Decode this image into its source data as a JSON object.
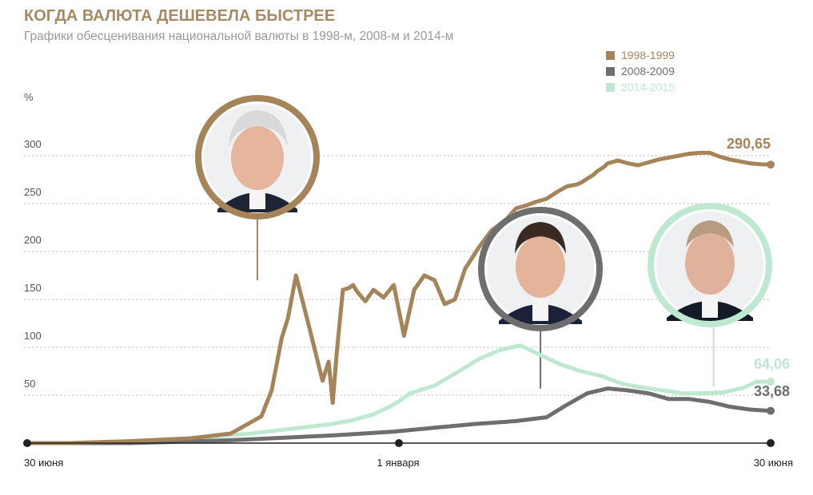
{
  "header": {
    "title": "КОГДА ВАЛЮТА ДЕШЕВЕЛА БЫСТРЕЕ",
    "subtitle": "Графики обесценивания национальной валюты в 1998-м, 2008-м и 2014-м"
  },
  "chart_data": {
    "type": "line",
    "ylabel": "%",
    "ylim": [
      0,
      320
    ],
    "yticks": [
      50,
      100,
      150,
      200,
      250,
      300
    ],
    "grid": true,
    "legend_position": "top-right",
    "x_axis_labels": [
      "30 июня",
      "1 января",
      "30 июня"
    ],
    "x_axis_range": [
      0,
      365
    ],
    "series": [
      {
        "name": "1998-1999",
        "color": "#a6845a",
        "end_label": "290,65",
        "x": [
          0,
          20,
          50,
          80,
          100,
          115,
          120,
          125,
          128,
          132,
          138,
          145,
          148,
          150,
          152,
          155,
          158,
          160,
          162,
          166,
          170,
          175,
          180,
          185,
          190,
          195,
          200,
          205,
          210,
          215,
          222,
          228,
          235,
          240,
          245,
          250,
          255,
          260,
          265,
          270,
          272,
          275,
          278,
          280,
          283,
          285,
          290,
          295,
          300,
          305,
          310,
          315,
          320,
          325,
          330,
          335,
          340,
          345,
          350,
          355,
          360,
          365
        ],
        "values": [
          0,
          0,
          2,
          5,
          10,
          28,
          55,
          110,
          130,
          175,
          125,
          65,
          85,
          42,
          95,
          160,
          162,
          165,
          158,
          148,
          160,
          152,
          165,
          112,
          160,
          175,
          170,
          145,
          150,
          182,
          205,
          222,
          233,
          245,
          248,
          252,
          255,
          262,
          268,
          270,
          272,
          276,
          280,
          284,
          288,
          292,
          295,
          292,
          290,
          293,
          296,
          298,
          300,
          302,
          303,
          303,
          299,
          296,
          294,
          292,
          291,
          290.65
        ]
      },
      {
        "name": "2008-2009",
        "color": "#6e6e6e",
        "end_label": "33,68",
        "x": [
          0,
          50,
          100,
          150,
          180,
          200,
          220,
          240,
          255,
          265,
          275,
          285,
          295,
          305,
          315,
          325,
          335,
          345,
          355,
          365
        ],
        "values": [
          0,
          0,
          3,
          8,
          12,
          16,
          20,
          23,
          27,
          40,
          52,
          57,
          55,
          52,
          46,
          46,
          43,
          38,
          35,
          33.68
        ]
      },
      {
        "name": "2014-2015",
        "color": "#bfe8d3",
        "end_label": "64,06",
        "x": [
          0,
          50,
          80,
          110,
          130,
          150,
          160,
          170,
          178,
          182,
          188,
          200,
          212,
          222,
          232,
          242,
          252,
          262,
          272,
          282,
          292,
          302,
          312,
          322,
          332,
          342,
          352,
          358,
          365
        ],
        "values": [
          0,
          0,
          5,
          10,
          15,
          20,
          24,
          30,
          38,
          43,
          52,
          60,
          75,
          88,
          97,
          102,
          92,
          82,
          75,
          70,
          62,
          58,
          55,
          52,
          52,
          53,
          58,
          64,
          64.06
        ]
      }
    ]
  },
  "portraits": [
    {
      "label": "1998-1999",
      "ring_color": "#a6845a",
      "x_data": 113,
      "y_data": 170
    },
    {
      "label": "2008-2009",
      "ring_color": "#6e6e6e",
      "x_data": 252,
      "y_data": 57
    },
    {
      "label": "2014-2015",
      "ring_color": "#bfe8d3",
      "x_data": 337,
      "y_data": 59
    }
  ]
}
